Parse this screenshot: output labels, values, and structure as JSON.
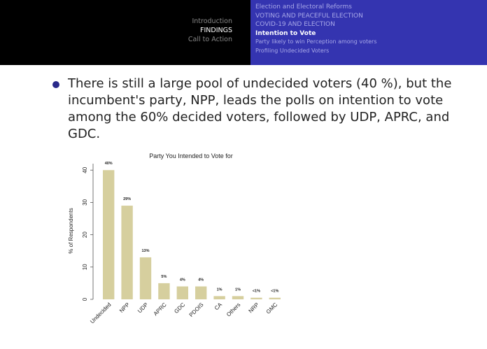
{
  "header": {
    "sections": [
      "Introduction",
      "FINDINGS",
      "Call to Action"
    ],
    "subsections": [
      "Election and Electoral Reforms",
      "VOTING AND PEACEFUL ELECTION",
      "COVID-19 AND ELECTION",
      "Intention to Vote",
      "Party likely to win Perception among voters",
      "Profiling Undecided Voters"
    ]
  },
  "bullet": "There is still a large pool of undecided voters (40 %), but the incumbent's party, NPP, leads the polls on intention to vote among the 60% decided voters, followed by UDP, APRC, and GDC.",
  "chart_data": {
    "type": "bar",
    "title": "Party You Intended to Vote for",
    "y_label": "% of Respondents",
    "categories": [
      "Undecided",
      "NPP",
      "UDP",
      "APRC",
      "GDC",
      "PDOIS",
      "CA",
      "Others",
      "NRP",
      "GMC"
    ],
    "values": [
      40,
      29,
      13,
      5,
      4,
      4,
      1,
      1,
      0.5,
      0.5
    ],
    "value_labels": [
      "40%",
      "29%",
      "13%",
      "5%",
      "4%",
      "4%",
      "1%",
      "1%",
      "<1%",
      "<1%"
    ],
    "color": "#d6cf9e",
    "ylim": [
      0,
      42
    ],
    "yticks": [
      0,
      10,
      20,
      30,
      40
    ]
  }
}
